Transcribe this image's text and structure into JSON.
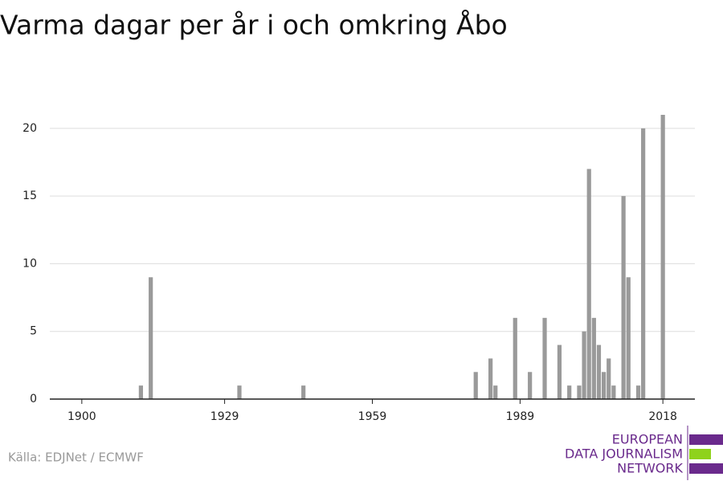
{
  "chart_data": {
    "type": "bar",
    "title": "Varma dagar per år i och omkring Åbo",
    "x": [
      1912,
      1914,
      1932,
      1945,
      1980,
      1983,
      1984,
      1988,
      1991,
      1994,
      1997,
      1999,
      2001,
      2002,
      2003,
      2004,
      2005,
      2006,
      2007,
      2008,
      2010,
      2011,
      2013,
      2014,
      2018
    ],
    "values": [
      1,
      9,
      1,
      1,
      2,
      3,
      1,
      6,
      2,
      6,
      4,
      1,
      1,
      5,
      17,
      6,
      4,
      2,
      3,
      1,
      15,
      9,
      1,
      20,
      21
    ],
    "color": "#9a9a9a",
    "xlim": [
      1893.5,
      2024.5
    ],
    "xticks": [
      1900,
      1929,
      1959,
      1989,
      2018
    ],
    "ylim": [
      0,
      21
    ],
    "yticks": [
      0,
      5,
      10,
      15,
      20
    ],
    "grid": true
  },
  "footer": {
    "source": "Källa: EDJNet / ECMWF",
    "logo": [
      "EUROPEAN",
      "DATA JOURNALISM",
      "NETWORK"
    ]
  }
}
